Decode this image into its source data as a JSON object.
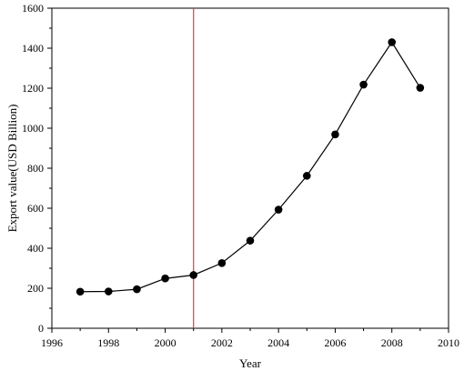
{
  "chart_data": {
    "type": "line",
    "title": "",
    "xlabel": "Year",
    "ylabel": "Export value(USD Billion)",
    "xlim": [
      1996,
      2010
    ],
    "ylim": [
      0,
      1600
    ],
    "x_ticks": [
      1996,
      1998,
      2000,
      2002,
      2004,
      2006,
      2008,
      2010
    ],
    "y_ticks": [
      0,
      200,
      400,
      600,
      800,
      1000,
      1200,
      1400,
      1600
    ],
    "x_tick_labels": [
      "1996",
      "1998",
      "2000",
      "2002",
      "2004",
      "2006",
      "2008",
      "2010"
    ],
    "y_tick_labels": [
      "0",
      "200",
      "400",
      "600",
      "800",
      "1000",
      "1200",
      "1400",
      "1600"
    ],
    "grid": false,
    "legend": "none",
    "series": [
      {
        "x": [
          1997,
          1998,
          1999,
          2000,
          2001,
          2002,
          2003,
          2004,
          2005,
          2006,
          2007,
          2008,
          2009
        ],
        "y": [
          183,
          184,
          195,
          249,
          266,
          326,
          438,
          593,
          762,
          969,
          1218,
          1430,
          1202
        ],
        "marker": "circle",
        "color": "#000000"
      }
    ],
    "vertical_lines": [
      {
        "x": 2001,
        "color": "#e8383d"
      }
    ]
  }
}
